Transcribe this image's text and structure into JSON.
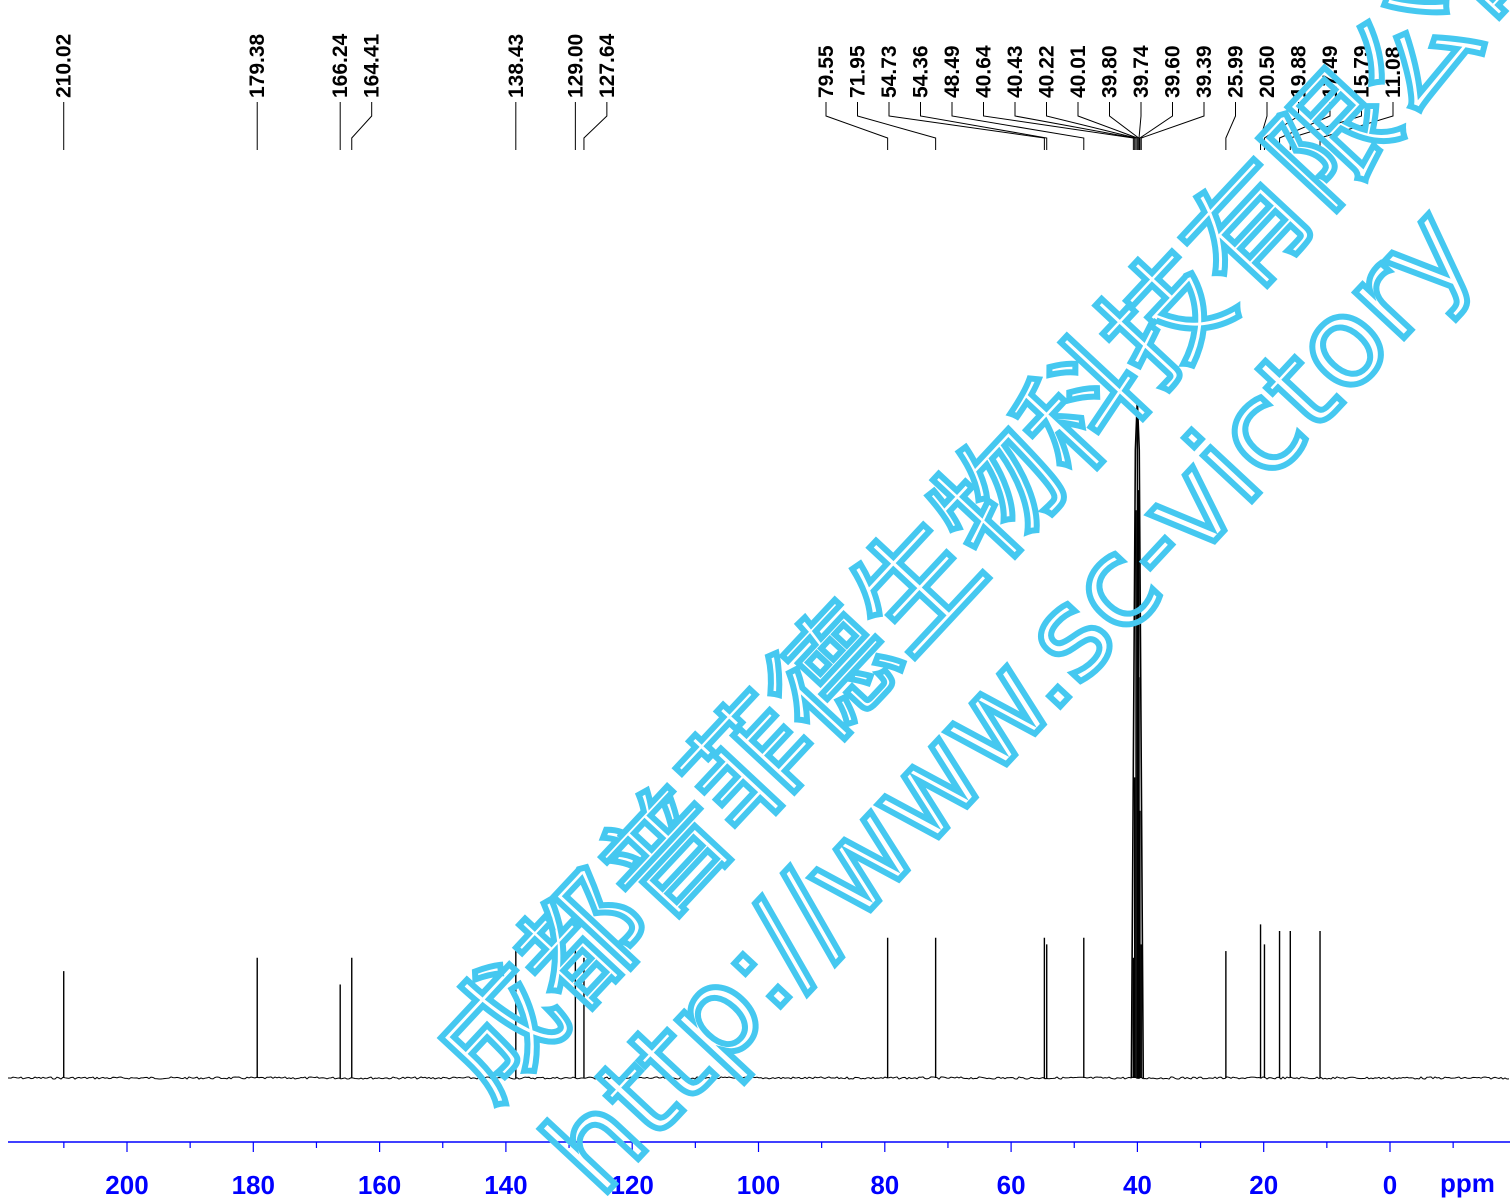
{
  "chart_data": {
    "type": "line",
    "title": "",
    "xlabel": "ppm",
    "ylabel": "",
    "xlim": [
      219.5,
      -18.5
    ],
    "x_reversed": true,
    "grid": false,
    "legend": "none",
    "x_ticks": [
      200,
      180,
      160,
      140,
      120,
      100,
      80,
      60,
      40,
      20,
      0
    ],
    "x_tick_labels": [
      "200",
      "180",
      "160",
      "140",
      "120",
      "100",
      "80",
      "60",
      "40",
      "20",
      "0"
    ],
    "peak_labels": [
      "210.02",
      "179.38",
      "166.24",
      "164.41",
      "138.43",
      "129.00",
      "127.64",
      "79.55",
      "71.95",
      "54.73",
      "54.36",
      "48.49",
      "40.64",
      "40.43",
      "40.22",
      "40.01",
      "39.80",
      "39.74",
      "39.60",
      "39.39",
      "25.99",
      "20.50",
      "19.88",
      "17.49",
      "15.79",
      "11.08"
    ],
    "series": [
      {
        "peaks": [
          {
            "ppm": 210.02,
            "intensity": 0.16
          },
          {
            "ppm": 179.38,
            "intensity": 0.18
          },
          {
            "ppm": 166.24,
            "intensity": 0.14
          },
          {
            "ppm": 164.41,
            "intensity": 0.18
          },
          {
            "ppm": 138.43,
            "intensity": 0.2
          },
          {
            "ppm": 129.0,
            "intensity": 0.2
          },
          {
            "ppm": 127.64,
            "intensity": 0.18
          },
          {
            "ppm": 79.55,
            "intensity": 0.21
          },
          {
            "ppm": 71.95,
            "intensity": 0.21
          },
          {
            "ppm": 54.73,
            "intensity": 0.21
          },
          {
            "ppm": 54.36,
            "intensity": 0.2
          },
          {
            "ppm": 48.49,
            "intensity": 0.21
          },
          {
            "ppm": 40.64,
            "intensity": 0.18
          },
          {
            "ppm": 40.43,
            "intensity": 0.45
          },
          {
            "ppm": 40.22,
            "intensity": 0.85
          },
          {
            "ppm": 40.01,
            "intensity": 1.0
          },
          {
            "ppm": 39.8,
            "intensity": 0.88
          },
          {
            "ppm": 39.74,
            "intensity": 0.6
          },
          {
            "ppm": 39.6,
            "intensity": 0.4
          },
          {
            "ppm": 39.39,
            "intensity": 0.2
          },
          {
            "ppm": 25.99,
            "intensity": 0.19
          },
          {
            "ppm": 20.5,
            "intensity": 0.23
          },
          {
            "ppm": 19.88,
            "intensity": 0.2
          },
          {
            "ppm": 17.49,
            "intensity": 0.22
          },
          {
            "ppm": 15.79,
            "intensity": 0.22
          },
          {
            "ppm": 11.08,
            "intensity": 0.22
          }
        ]
      }
    ]
  },
  "watermark": {
    "company_cn": "成都普菲德生物科技有限公司",
    "url": "http://www.sc-victory",
    "color": "#45c8f0"
  },
  "colors": {
    "axis": "#0000ff",
    "spectrum": "#000000"
  }
}
